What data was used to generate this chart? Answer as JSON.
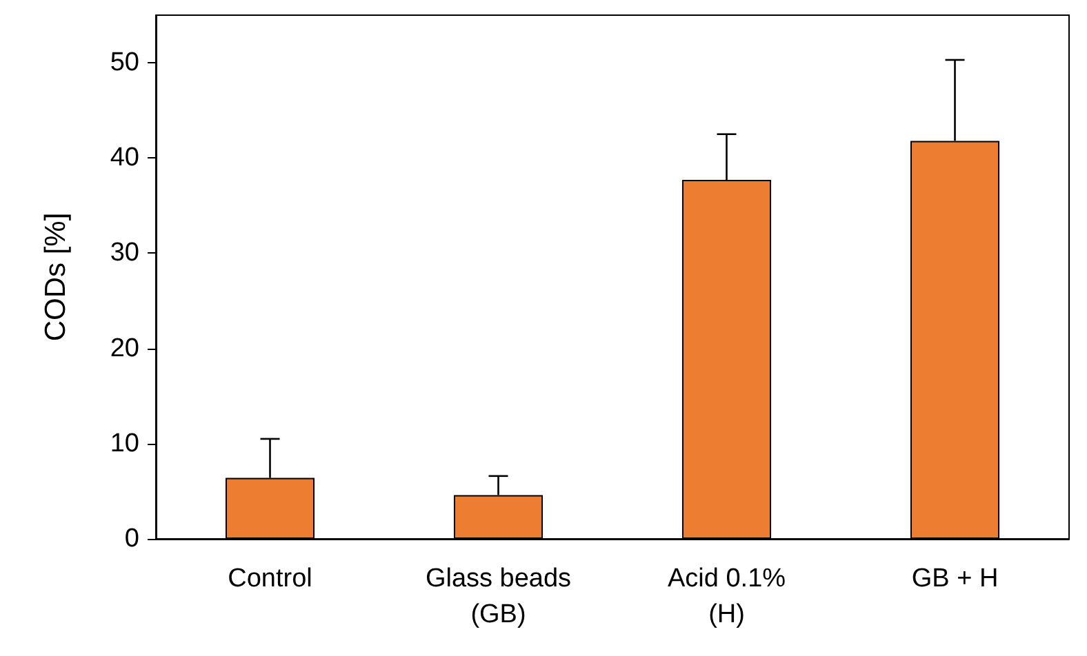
{
  "chart_data": {
    "type": "bar",
    "ylabel": "CODs [%]",
    "categories": [
      "Control",
      "Glass beads\n(GB)",
      "Acid 0.1%\n(H)",
      "GB + H"
    ],
    "values": [
      6.4,
      4.6,
      37.7,
      41.8
    ],
    "color": "#ed7d31",
    "errors": [
      [
        6.4,
        10.5
      ],
      [
        4.6,
        6.6
      ],
      [
        37.7,
        42.5
      ],
      [
        41.8,
        50.3
      ]
    ],
    "ylim": [
      0,
      55
    ],
    "yticks": [
      0,
      10,
      20,
      30,
      40,
      50
    ],
    "grid": false
  }
}
